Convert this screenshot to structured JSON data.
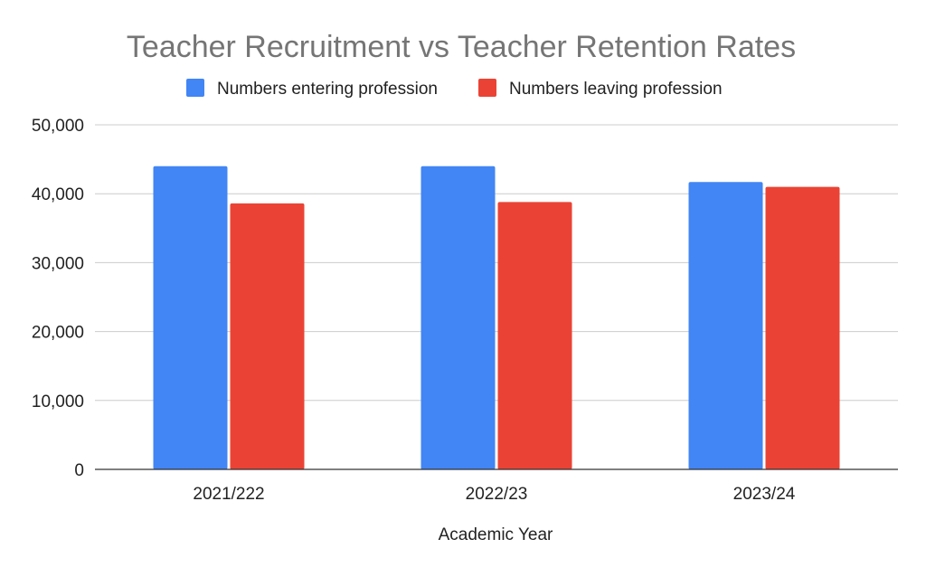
{
  "chart_data": {
    "type": "bar",
    "title": "Teacher Recruitment vs Teacher Retention Rates",
    "xlabel": "Academic Year",
    "ylabel": "",
    "categories": [
      "2021/222",
      "2022/23",
      "2023/24"
    ],
    "series": [
      {
        "name": "Numbers entering profession",
        "color": "#4285f4",
        "values": [
          44000,
          44000,
          41700
        ]
      },
      {
        "name": "Numbers leaving profession",
        "color": "#ea4335",
        "values": [
          38600,
          38800,
          41000
        ]
      }
    ],
    "ylim": [
      0,
      50000
    ],
    "yticks": [
      0,
      10000,
      20000,
      30000,
      40000,
      50000
    ],
    "ytick_labels": [
      "0",
      "10,000",
      "20,000",
      "30,000",
      "40,000",
      "50,000"
    ],
    "grid": true,
    "legend_position": "top"
  }
}
